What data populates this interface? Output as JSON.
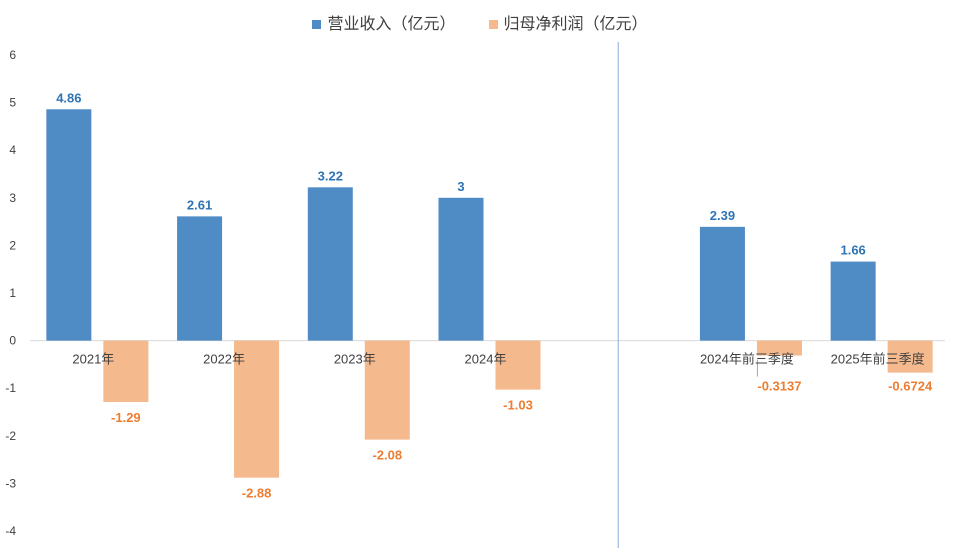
{
  "chart_data": {
    "type": "bar",
    "categories": [
      "2021年",
      "2022年",
      "2023年",
      "2024年",
      "",
      "2024年前三季度",
      "2025年前三季度"
    ],
    "series": [
      {
        "name": "营业收入（亿元）",
        "color": "#4f8bc4",
        "label_color": "#2e74b5",
        "values": [
          4.86,
          2.61,
          3.22,
          3,
          null,
          2.39,
          1.66
        ],
        "labels": [
          "4.86",
          "2.61",
          "3.22",
          "3",
          "",
          "2.39",
          "1.66"
        ]
      },
      {
        "name": "归母净利润（亿元）",
        "color": "#f4b98d",
        "label_color": "#ed7d31",
        "values": [
          -1.29,
          -2.88,
          -2.08,
          -1.03,
          null,
          -0.3137,
          -0.6724
        ],
        "labels": [
          "-1.29",
          "-2.88",
          "-2.08",
          "-1.03",
          "",
          "-0.3137",
          "-0.6724"
        ]
      }
    ],
    "yticks": [
      "6",
      "5",
      "4",
      "3",
      "2",
      "1",
      "0",
      "-1",
      "-2",
      "-3",
      "-4"
    ],
    "ylim": [
      -4,
      6
    ],
    "grid": false,
    "legend_position": "top-center",
    "separator_after_category": 4,
    "title": "",
    "xlabel": "",
    "ylabel": ""
  }
}
